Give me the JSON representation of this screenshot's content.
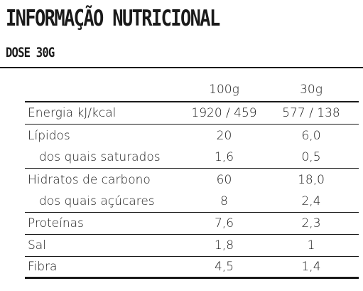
{
  "header": {
    "title": "INFORMAÇÃO NUTRICIONAL",
    "subtitle": "DOSE 30G"
  },
  "table": {
    "columns": [
      "",
      "100g",
      "30g"
    ],
    "rows": [
      {
        "label": "Energia kJ/kcal",
        "per100g": "1920 / 459",
        "per30g": "577 / 138",
        "indent": false
      },
      {
        "label": "Lípidos",
        "per100g": "20",
        "per30g": "6,0",
        "indent": false
      },
      {
        "label": "dos quais saturados",
        "per100g": "1,6",
        "per30g": "0,5",
        "indent": true
      },
      {
        "label": "Hidratos de carbono",
        "per100g": "60",
        "per30g": "18,0",
        "indent": false
      },
      {
        "label": "dos quais açúcares",
        "per100g": "8",
        "per30g": "2,4",
        "indent": true
      },
      {
        "label": "Proteínas",
        "per100g": "7,6",
        "per30g": "2,3",
        "indent": false
      },
      {
        "label": "Sal",
        "per100g": "1,8",
        "per30g": "1",
        "indent": false
      },
      {
        "label": "Fibra",
        "per100g": "4,5",
        "per30g": "1,4",
        "indent": false
      }
    ]
  }
}
